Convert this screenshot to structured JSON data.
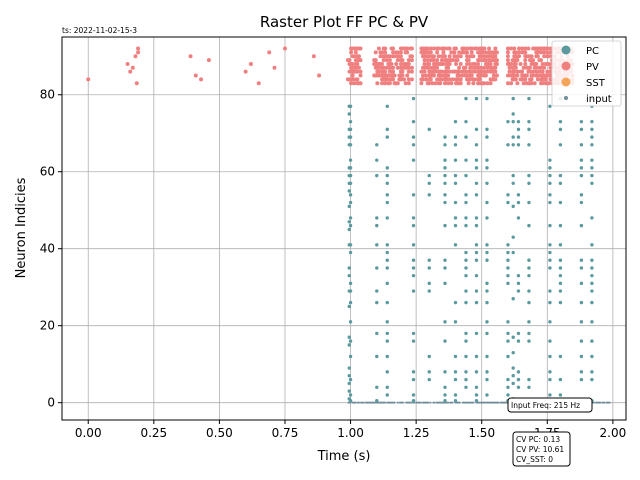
{
  "timestamp": "ts: 2022-11-02-15-3",
  "colors": {
    "pc": "#5a9a9f",
    "pv": "#f08080",
    "sst": "#f5a55a",
    "input": "#6f8f9a",
    "grid": "#b0b0b0"
  },
  "info_box": {
    "input_freq": "Input Freq: 215 Hz",
    "cv_lines": [
      "CV PC: 0.13",
      "CV PV: 10.61",
      "CV_SST: 0"
    ]
  },
  "chart_data": {
    "type": "scatter",
    "title": "Raster Plot FF PC & PV",
    "xlabel": "Time (s)",
    "ylabel": "Neuron Indicies",
    "xlim": [
      -0.1,
      2.05
    ],
    "ylim": [
      -4.5,
      95
    ],
    "xticks": [
      0.0,
      0.25,
      0.5,
      0.75,
      1.0,
      1.25,
      1.5,
      1.75,
      2.0
    ],
    "xtick_labels": [
      "0.00",
      "0.25",
      "0.50",
      "0.75",
      "1.00",
      "1.25",
      "1.50",
      "1.75",
      "2.00"
    ],
    "yticks": [
      0,
      20,
      40,
      60,
      80
    ],
    "ytick_labels": [
      "0",
      "20",
      "40",
      "60",
      "80"
    ],
    "grid": true,
    "legend_position": "top-right",
    "legend": [
      {
        "label": "PC",
        "series": "pc"
      },
      {
        "label": "PV",
        "series": "pv"
      },
      {
        "label": "SST",
        "series": "sst"
      },
      {
        "label": "input",
        "series": "input"
      }
    ],
    "series": [
      {
        "name": "PC",
        "key": "pc",
        "spike_times": [
          1.0,
          1.1,
          1.14,
          1.24,
          1.3,
          1.36,
          1.4,
          1.44,
          1.48,
          1.52,
          1.6,
          1.64,
          1.68,
          1.76,
          1.8,
          1.88,
          1.92
        ],
        "neurons": [
          0.5,
          2,
          4,
          6,
          8,
          12,
          16,
          18,
          21,
          26,
          29,
          31,
          33,
          35,
          37,
          39,
          41,
          46,
          48,
          52,
          54,
          57,
          59,
          61,
          63,
          67,
          69,
          71,
          73,
          77,
          79
        ]
      },
      {
        "name": "PV",
        "key": "pv",
        "early_points": [
          [
            0.0,
            84
          ],
          [
            0.15,
            88
          ],
          [
            0.16,
            86
          ],
          [
            0.17,
            87
          ],
          [
            0.18,
            90
          ],
          [
            0.185,
            83
          ],
          [
            0.19,
            92
          ],
          [
            0.19,
            91
          ],
          [
            0.39,
            90
          ],
          [
            0.41,
            85
          ],
          [
            0.43,
            84
          ],
          [
            0.46,
            89
          ],
          [
            0.6,
            86
          ],
          [
            0.62,
            88
          ],
          [
            0.65,
            83
          ],
          [
            0.69,
            91
          ],
          [
            0.71,
            87
          ],
          [
            0.75,
            92
          ],
          [
            0.86,
            90
          ],
          [
            0.88,
            85
          ]
        ],
        "dense_bands": [
          [
            0.99,
            1.04
          ],
          [
            1.09,
            1.24
          ],
          [
            1.27,
            1.56
          ],
          [
            1.6,
            1.85
          ]
        ],
        "neurons": [
          83,
          84,
          85,
          86,
          87,
          88,
          89,
          90,
          91,
          92
        ]
      },
      {
        "name": "SST",
        "key": "sst",
        "points": []
      },
      {
        "name": "input",
        "key": "input",
        "t_start": 0.98,
        "t_end": 1.99,
        "neuron": 0
      }
    ]
  }
}
